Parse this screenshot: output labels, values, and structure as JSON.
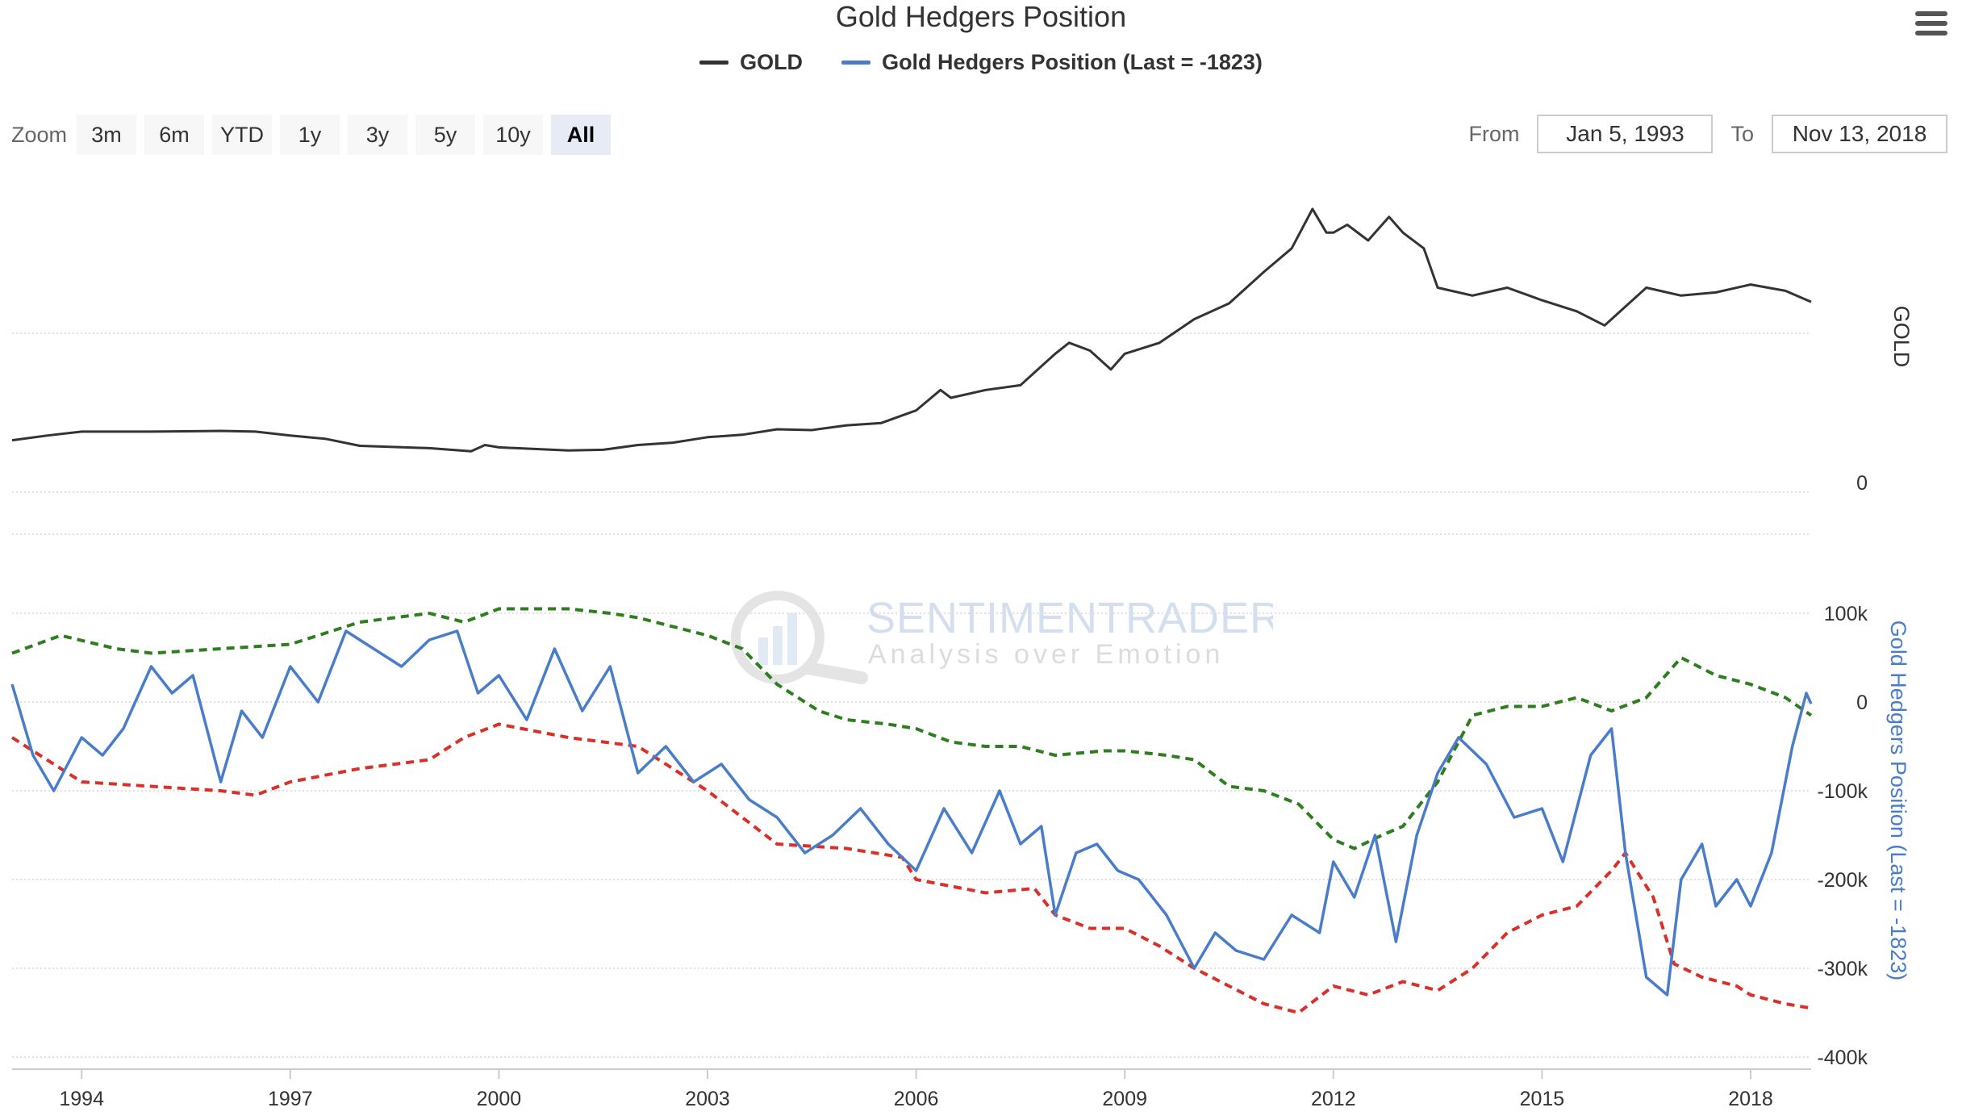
{
  "title": "Gold Hedgers Position",
  "legend": [
    {
      "name": "GOLD",
      "color": "#333333"
    },
    {
      "name": "Gold Hedgers Position (Last = -1823)",
      "color": "#4a7dc9"
    }
  ],
  "menu_icon": "hamburger-menu-icon",
  "range_selector": {
    "label": "Zoom",
    "buttons": [
      "3m",
      "6m",
      "YTD",
      "1y",
      "3y",
      "5y",
      "10y",
      "All"
    ],
    "active": "All"
  },
  "date_range": {
    "from_label": "From",
    "from_value": "Jan 5, 1993",
    "to_label": "To",
    "to_value": "Nov 13, 2018"
  },
  "watermark": {
    "brand": "SENTIMENTRADER",
    "tagline": "Analysis over Emotion"
  },
  "colors": {
    "gold": "#333333",
    "hedgers": "#4a7dc9",
    "upper_band": "#2e7d1f",
    "lower_band": "#d9302a"
  },
  "chart_data": {
    "type": "line",
    "x_range": [
      "1993-01-05",
      "2018-11-13"
    ],
    "x_ticks": [
      "1994",
      "1997",
      "2000",
      "2003",
      "2006",
      "2009",
      "2012",
      "2015",
      "2018"
    ],
    "panels": [
      {
        "name": "GOLD",
        "axis_title": "GOLD",
        "y_tick_labels": [
          "0"
        ],
        "grid": true,
        "series": [
          {
            "name": "GOLD",
            "x": [
              1993.0,
              1993.5,
              1994.0,
              1995.0,
              1996.0,
              1996.5,
              1997.0,
              1997.5,
              1998.0,
              1999.0,
              1999.6,
              1999.8,
              2000.0,
              2001.0,
              2001.5,
              2002.0,
              2002.5,
              2003.0,
              2003.5,
              2004.0,
              2004.5,
              2005.0,
              2005.5,
              2006.0,
              2006.35,
              2006.5,
              2007.0,
              2007.5,
              2008.0,
              2008.2,
              2008.5,
              2008.8,
              2009.0,
              2009.5,
              2010.0,
              2010.5,
              2011.0,
              2011.4,
              2011.7,
              2011.9,
              2012.0,
              2012.2,
              2012.5,
              2012.8,
              2013.0,
              2013.3,
              2013.5,
              2014.0,
              2014.5,
              2015.0,
              2015.5,
              2015.9,
              2016.0,
              2016.5,
              2017.0,
              2017.5,
              2018.0,
              2018.5,
              2018.87
            ],
            "y": [
              330,
              360,
              385,
              385,
              390,
              385,
              360,
              340,
              295,
              280,
              260,
              300,
              285,
              265,
              270,
              300,
              315,
              350,
              365,
              400,
              395,
              425,
              440,
              520,
              650,
              600,
              650,
              680,
              880,
              950,
              900,
              780,
              880,
              950,
              1100,
              1200,
              1400,
              1550,
              1800,
              1650,
              1650,
              1700,
              1600,
              1750,
              1650,
              1550,
              1300,
              1250,
              1300,
              1220,
              1150,
              1060,
              1100,
              1300,
              1250,
              1270,
              1320,
              1280,
              1210
            ]
          }
        ]
      },
      {
        "name": "Gold Hedgers Position",
        "axis_title": "Gold Hedgers Position (Last = -1823)",
        "y_tick_labels": [
          "100k",
          "0",
          "-100k",
          "-200k",
          "-300k",
          "-400k"
        ],
        "ylim": [
          -400000,
          100000
        ],
        "grid": true,
        "series": [
          {
            "name": "Gold Hedgers Position (Last = -1823)",
            "x": [
              1993.0,
              1993.3,
              1993.6,
              1994.0,
              1994.3,
              1994.6,
              1995.0,
              1995.3,
              1995.6,
              1996.0,
              1996.3,
              1996.6,
              1997.0,
              1997.4,
              1997.8,
              1998.2,
              1998.6,
              1999.0,
              1999.4,
              1999.7,
              2000.0,
              2000.4,
              2000.8,
              2001.2,
              2001.6,
              2002.0,
              2002.4,
              2002.8,
              2003.2,
              2003.6,
              2004.0,
              2004.4,
              2004.8,
              2005.2,
              2005.6,
              2006.0,
              2006.4,
              2006.8,
              2007.2,
              2007.5,
              2007.8,
              2008.0,
              2008.3,
              2008.6,
              2008.9,
              2009.2,
              2009.6,
              2010.0,
              2010.3,
              2010.6,
              2011.0,
              2011.4,
              2011.8,
              2012.0,
              2012.3,
              2012.6,
              2012.9,
              2013.2,
              2013.5,
              2013.8,
              2014.2,
              2014.6,
              2015.0,
              2015.3,
              2015.7,
              2016.0,
              2016.2,
              2016.5,
              2016.8,
              2017.0,
              2017.3,
              2017.5,
              2017.8,
              2018.0,
              2018.3,
              2018.6,
              2018.8,
              2018.87
            ],
            "y": [
              20000,
              -60000,
              -100000,
              -40000,
              -60000,
              -30000,
              40000,
              10000,
              30000,
              -90000,
              -10000,
              -40000,
              40000,
              0,
              80000,
              60000,
              40000,
              70000,
              80000,
              10000,
              30000,
              -20000,
              60000,
              -10000,
              40000,
              -80000,
              -50000,
              -90000,
              -70000,
              -110000,
              -130000,
              -170000,
              -150000,
              -120000,
              -160000,
              -190000,
              -120000,
              -170000,
              -100000,
              -160000,
              -140000,
              -240000,
              -170000,
              -160000,
              -190000,
              -200000,
              -240000,
              -300000,
              -260000,
              -280000,
              -290000,
              -240000,
              -260000,
              -180000,
              -220000,
              -150000,
              -270000,
              -150000,
              -80000,
              -40000,
              -70000,
              -130000,
              -120000,
              -180000,
              -60000,
              -30000,
              -170000,
              -310000,
              -330000,
              -200000,
              -160000,
              -230000,
              -200000,
              -230000,
              -170000,
              -50000,
              10000,
              -2000
            ]
          },
          {
            "name": "Upper band",
            "style": "dashed",
            "x": [
              1993.0,
              1993.7,
              1994.5,
              1995.0,
              1996.0,
              1997.0,
              1998.0,
              1999.0,
              1999.5,
              2000.0,
              2001.0,
              2001.6,
              2002.0,
              2003.0,
              2003.5,
              2004.0,
              2004.6,
              2005.0,
              2005.6,
              2006.0,
              2006.5,
              2007.0,
              2007.5,
              2008.0,
              2008.7,
              2009.0,
              2009.6,
              2010.0,
              2010.5,
              2011.0,
              2011.5,
              2012.0,
              2012.3,
              2012.7,
              2013.0,
              2013.5,
              2014.0,
              2014.5,
              2015.0,
              2015.5,
              2016.0,
              2016.5,
              2017.0,
              2017.5,
              2018.0,
              2018.5,
              2018.87
            ],
            "y": [
              55000,
              75000,
              60000,
              55000,
              60000,
              65000,
              90000,
              100000,
              90000,
              105000,
              105000,
              100000,
              95000,
              75000,
              60000,
              20000,
              -10000,
              -20000,
              -25000,
              -30000,
              -45000,
              -50000,
              -50000,
              -60000,
              -55000,
              -55000,
              -60000,
              -65000,
              -95000,
              -100000,
              -115000,
              -155000,
              -165000,
              -150000,
              -140000,
              -90000,
              -15000,
              -5000,
              -5000,
              5000,
              -10000,
              5000,
              50000,
              30000,
              20000,
              5000,
              -15000
            ]
          },
          {
            "name": "Lower band",
            "style": "dashed",
            "x": [
              1993.0,
              1994.0,
              1995.0,
              1996.0,
              1996.5,
              1997.0,
              1998.0,
              1999.0,
              1999.5,
              2000.0,
              2001.0,
              2002.0,
              2003.0,
              2004.0,
              2005.0,
              2005.8,
              2006.0,
              2007.0,
              2007.7,
              2008.0,
              2008.5,
              2009.0,
              2009.5,
              2010.0,
              2010.5,
              2011.0,
              2011.5,
              2012.0,
              2012.5,
              2013.0,
              2013.5,
              2014.0,
              2014.5,
              2015.0,
              2015.5,
              2016.0,
              2016.2,
              2016.6,
              2016.9,
              2017.3,
              2017.8,
              2018.0,
              2018.5,
              2018.87
            ],
            "y": [
              -40000,
              -90000,
              -95000,
              -100000,
              -105000,
              -90000,
              -75000,
              -65000,
              -40000,
              -25000,
              -40000,
              -50000,
              -100000,
              -160000,
              -165000,
              -175000,
              -200000,
              -215000,
              -210000,
              -240000,
              -255000,
              -255000,
              -275000,
              -300000,
              -320000,
              -340000,
              -350000,
              -320000,
              -330000,
              -315000,
              -325000,
              -300000,
              -260000,
              -240000,
              -230000,
              -190000,
              -170000,
              -220000,
              -295000,
              -310000,
              -320000,
              -330000,
              -340000,
              -345000
            ]
          }
        ]
      }
    ]
  }
}
